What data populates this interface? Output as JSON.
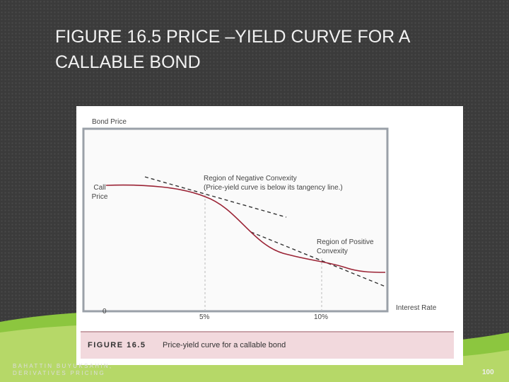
{
  "slide": {
    "title": "FIGURE 16.5 PRICE –YIELD CURVE FOR A CALLABLE BOND",
    "footer": "BAHATTIN BUYUKSAHIN, DERIVATIVES PRICING",
    "page_number": "100"
  },
  "figure": {
    "y_axis_label": "Bond Price",
    "call_price_label": "Call Price",
    "origin_label": "0",
    "x_axis_label": "Interest Rate",
    "x_labels": [
      "5%",
      "10%"
    ],
    "negative_convexity": {
      "title": "Region of Negative Convexity",
      "note": "(Price-yield curve is below its tangency line.)"
    },
    "positive_convexity": "Region of Positive Convexity",
    "caption_number": "FIGURE 16.5",
    "caption_text": "Price-yield curve for a callable bond"
  }
}
